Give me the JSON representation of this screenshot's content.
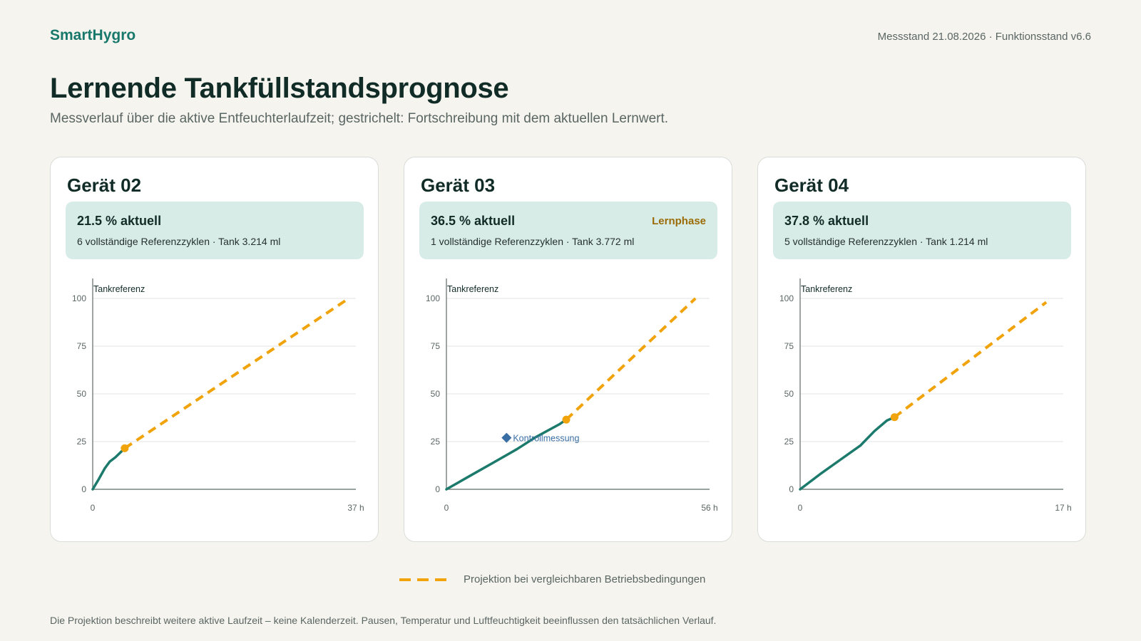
{
  "header": {
    "brand": "SmartHygro",
    "meta": "Messstand 21.08.2026 · Funktionsstand v6.6",
    "title": "Lernende Tankfüllstandsprognose",
    "subtitle": "Messverlauf über die aktive Entfeuchterlaufzeit; gestrichelt: Fortschreibung mit dem aktuellen Lernwert."
  },
  "colors": {
    "measured": "#1b7a6c",
    "projection": "#f0a30a",
    "control": "#3a6fa6",
    "grid": "#e1e3e0",
    "axis": "#5e6a67",
    "tick": "#5a6664"
  },
  "cards": [
    {
      "title": "Gerät 02",
      "current": "21.5 % aktuell",
      "badge": "",
      "detail": "6 vollständige Referenzzyklen · Tank 3.214 ml"
    },
    {
      "title": "Gerät 03",
      "current": "36.5 % aktuell",
      "badge": "Lernphase",
      "detail": "1 vollständige Referenzzyklen · Tank 3.772 ml"
    },
    {
      "title": "Gerät 04",
      "current": "37.8 % aktuell",
      "badge": "",
      "detail": "5 vollständige Referenzzyklen · Tank 1.214 ml"
    }
  ],
  "chart_data": [
    {
      "type": "line",
      "title": "Gerät 02",
      "ylabel": "Tankreferenz",
      "ylim": [
        0,
        100
      ],
      "y_ticks": [
        "0",
        "25",
        "50",
        "75",
        "100"
      ],
      "xlim": [
        0,
        37
      ],
      "x_tick_labels": [
        "0",
        "37 h"
      ],
      "grid": true,
      "series": [
        {
          "type": "measured",
          "points": [
            [
              0,
              0
            ],
            [
              0.8,
              5
            ],
            [
              1.7,
              11
            ],
            [
              2.4,
              14.5
            ],
            [
              3.2,
              16.8
            ],
            [
              4.5,
              21.5
            ]
          ]
        },
        {
          "type": "projection",
          "points": [
            [
              4.5,
              21.5
            ],
            [
              36,
              100
            ]
          ]
        }
      ],
      "current_point": [
        4.5,
        21.5
      ]
    },
    {
      "type": "line",
      "title": "Gerät 03",
      "ylabel": "Tankreferenz",
      "ylim": [
        0,
        100
      ],
      "y_ticks": [
        "0",
        "25",
        "50",
        "75",
        "100"
      ],
      "xlim": [
        0,
        56
      ],
      "x_tick_labels": [
        "0",
        "56 h"
      ],
      "grid": true,
      "series": [
        {
          "type": "measured",
          "points": [
            [
              0,
              0
            ],
            [
              5,
              7
            ],
            [
              10,
              14
            ],
            [
              15,
              21
            ],
            [
              19,
              27.3
            ],
            [
              24,
              34
            ],
            [
              25.5,
              36.5
            ]
          ]
        },
        {
          "type": "projection",
          "points": [
            [
              25.5,
              36.5
            ],
            [
              53,
              100
            ]
          ]
        }
      ],
      "current_point": [
        25.5,
        36.5
      ],
      "control_point": {
        "x": 12.8,
        "y": 27,
        "label": "Kontrollmessung"
      }
    },
    {
      "type": "line",
      "title": "Gerät 04",
      "ylabel": "Tankreferenz",
      "ylim": [
        0,
        100
      ],
      "y_ticks": [
        "0",
        "25",
        "50",
        "75",
        "100"
      ],
      "xlim": [
        0,
        17
      ],
      "x_tick_labels": [
        "0",
        "17 h"
      ],
      "grid": true,
      "series": [
        {
          "type": "measured",
          "points": [
            [
              0,
              0
            ],
            [
              1.3,
              8
            ],
            [
              2.6,
              15.5
            ],
            [
              3.9,
              23
            ],
            [
              4.8,
              30.5
            ],
            [
              5.6,
              36
            ],
            [
              6.1,
              37.8
            ]
          ]
        },
        {
          "type": "projection",
          "points": [
            [
              6.1,
              37.8
            ],
            [
              15.9,
              98
            ]
          ]
        }
      ],
      "current_point": [
        6.1,
        37.8
      ]
    }
  ],
  "legend": {
    "projection_label": "Projektion bei vergleichbaren Betriebsbedingungen"
  },
  "footnote": "Die Projektion beschreibt weitere aktive Laufzeit – keine Kalenderzeit. Pausen, Temperatur und Luftfeuchtigkeit beeinflussen den tatsächlichen Verlauf."
}
